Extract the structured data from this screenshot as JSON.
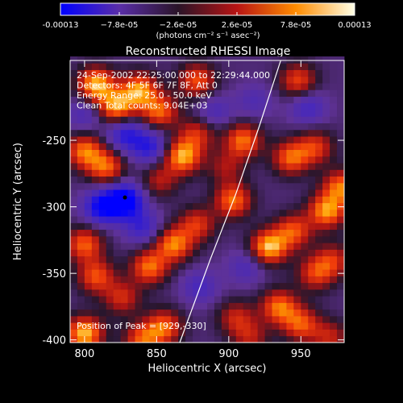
{
  "chart_data": {
    "type": "heatmap",
    "title": "Reconstructed RHESSI Image",
    "xlabel": "Heliocentric X (arcsec)",
    "ylabel": "Heliocentric Y (arcsec)",
    "xlim": [
      790,
      980
    ],
    "ylim": [
      -402,
      -190
    ],
    "x_ticks": [
      800,
      850,
      900,
      950
    ],
    "y_ticks": [
      -250,
      -300,
      -350,
      -400
    ],
    "colorbar": {
      "min": -0.00013,
      "max": 0.00013,
      "tick_values": [
        -0.00013,
        -7.8e-05,
        -2.6e-05,
        2.6e-05,
        7.8e-05,
        0.00013
      ],
      "tick_labels": [
        "-0.00013",
        "−7.8e-05",
        "−2.6e-05",
        "2.6e-05",
        "7.8e-05",
        "0.00013"
      ],
      "unit_label": "(photons cm⁻² s⁻¹ asec⁻²)",
      "colors": [
        "#0000ff",
        "#5a2ea8",
        "#2a1428",
        "#b81414",
        "#ff8c00",
        "#ffffe6"
      ]
    },
    "annotations": [
      "24-Sep-2002 22:25:00.000 to 22:29:44.000",
      "Detectors: 4F 5F 6F 7F 8F, Att 0",
      "Energy Range: 25.0 - 50.0 keV",
      "Clean     Total counts: 9.04E+03"
    ],
    "peak_label": "Position of Peak = [929,-330]",
    "peak_position": [
      929,
      -330
    ],
    "limb_curve": {
      "x": [
        866,
        887,
        905,
        921,
        936
      ],
      "y": [
        -402,
        -340,
        -290,
        -240,
        -190
      ]
    },
    "blobs": [
      {
        "x": 808,
        "y": -208,
        "v": 1.0
      },
      {
        "x": 822,
        "y": -225,
        "v": 0.9
      },
      {
        "x": 838,
        "y": -212,
        "v": 0.9
      },
      {
        "x": 852,
        "y": -228,
        "v": 0.75
      },
      {
        "x": 878,
        "y": -205,
        "v": 0.7
      },
      {
        "x": 868,
        "y": -262,
        "v": 0.95
      },
      {
        "x": 878,
        "y": -245,
        "v": 0.55
      },
      {
        "x": 852,
        "y": -280,
        "v": 0.45
      },
      {
        "x": 800,
        "y": -258,
        "v": 0.8
      },
      {
        "x": 815,
        "y": -270,
        "v": 0.75
      },
      {
        "x": 845,
        "y": -255,
        "v": -0.6
      },
      {
        "x": 828,
        "y": -295,
        "v": -1.0
      },
      {
        "x": 812,
        "y": -300,
        "v": -0.8
      },
      {
        "x": 840,
        "y": -315,
        "v": -0.5
      },
      {
        "x": 828,
        "y": -245,
        "v": -0.6
      },
      {
        "x": 800,
        "y": -230,
        "v": -0.35
      },
      {
        "x": 862,
        "y": -328,
        "v": 0.85
      },
      {
        "x": 845,
        "y": -345,
        "v": 0.8
      },
      {
        "x": 878,
        "y": -313,
        "v": 0.6
      },
      {
        "x": 800,
        "y": -328,
        "v": 0.75
      },
      {
        "x": 808,
        "y": -352,
        "v": 0.7
      },
      {
        "x": 826,
        "y": -368,
        "v": 0.55
      },
      {
        "x": 800,
        "y": -395,
        "v": 1.0
      },
      {
        "x": 855,
        "y": -390,
        "v": 0.75
      },
      {
        "x": 840,
        "y": -400,
        "v": 0.7
      },
      {
        "x": 880,
        "y": -360,
        "v": -0.4
      },
      {
        "x": 910,
        "y": -250,
        "v": 0.8
      },
      {
        "x": 903,
        "y": -295,
        "v": 0.8
      },
      {
        "x": 898,
        "y": -270,
        "v": 0.4
      },
      {
        "x": 928,
        "y": -330,
        "v": 1.0
      },
      {
        "x": 945,
        "y": -318,
        "v": 0.7
      },
      {
        "x": 943,
        "y": -263,
        "v": 0.75
      },
      {
        "x": 960,
        "y": -255,
        "v": 0.6
      },
      {
        "x": 968,
        "y": -303,
        "v": 0.9
      },
      {
        "x": 978,
        "y": -285,
        "v": 0.8
      },
      {
        "x": 960,
        "y": -350,
        "v": 0.6
      },
      {
        "x": 948,
        "y": -205,
        "v": 0.65
      },
      {
        "x": 955,
        "y": -225,
        "v": -0.45
      },
      {
        "x": 972,
        "y": -340,
        "v": 0.55
      },
      {
        "x": 935,
        "y": -375,
        "v": 0.8
      },
      {
        "x": 950,
        "y": -388,
        "v": 0.7
      },
      {
        "x": 905,
        "y": -383,
        "v": 0.5
      },
      {
        "x": 915,
        "y": -398,
        "v": 0.45
      },
      {
        "x": 970,
        "y": -398,
        "v": 0.5
      },
      {
        "x": 912,
        "y": -345,
        "v": -0.35
      },
      {
        "x": 918,
        "y": -220,
        "v": -0.3
      },
      {
        "x": 890,
        "y": -228,
        "v": -0.35
      }
    ]
  }
}
